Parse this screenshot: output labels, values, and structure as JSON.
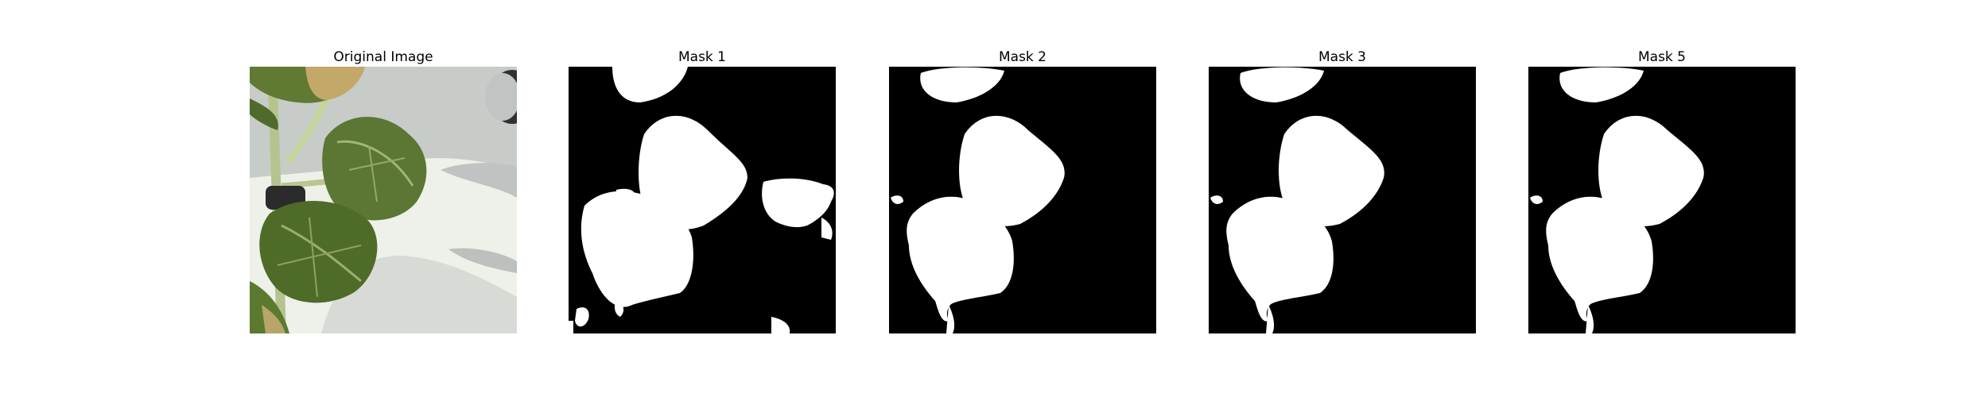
{
  "panels": [
    {
      "title": "Original Image"
    },
    {
      "title": "Mask 1"
    },
    {
      "title": "Mask 2"
    },
    {
      "title": "Mask 3"
    },
    {
      "title": "Mask 5"
    }
  ],
  "colors": {
    "mask_foreground": "#ffffff",
    "mask_background": "#000000",
    "leaf_green": "#5f7a35",
    "leaf_dark": "#3f5a22",
    "background_wall": "#e8e9e2",
    "shadow": "#a9aea6"
  }
}
